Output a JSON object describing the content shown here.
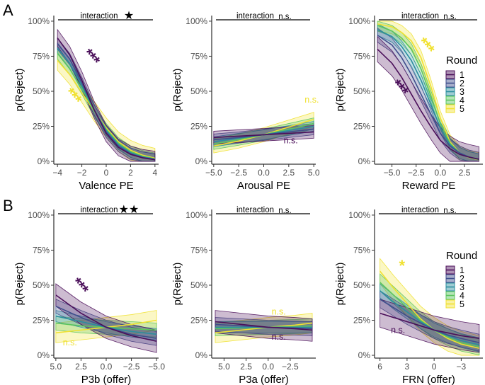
{
  "chart_data": [
    {
      "panel_letter": "A",
      "type": "line",
      "ribbons": true,
      "ylabel": "p(Reject)",
      "xlabel": "Valence PE",
      "xlim": [
        -4.3,
        4.3
      ],
      "ylim": [
        -0.02,
        1.04
      ],
      "x_reversed": false,
      "x_ticks": [
        -4,
        -2,
        0,
        2,
        4
      ],
      "x_tick_labels": [
        "−4",
        "−2",
        "0",
        "2",
        "4"
      ],
      "y_ticks": [
        0,
        0.25,
        0.5,
        0.75,
        1.0
      ],
      "y_tick_labels": [
        "0%",
        "25%",
        "50%",
        "75%",
        "100%"
      ],
      "interaction_label": "interaction",
      "interaction_mark": "★",
      "series": [
        {
          "name": "1",
          "x": [
            -4,
            -3,
            -2,
            -1,
            0,
            1,
            2,
            3,
            4
          ],
          "values": [
            0.88,
            0.76,
            0.58,
            0.37,
            0.2,
            0.1,
            0.05,
            0.025,
            0.012
          ],
          "band": 0.06
        },
        {
          "name": "2",
          "x": [
            -4,
            -3,
            -2,
            -1,
            0,
            1,
            2,
            3,
            4
          ],
          "values": [
            0.84,
            0.73,
            0.56,
            0.37,
            0.21,
            0.11,
            0.055,
            0.028,
            0.014
          ],
          "band": 0.04
        },
        {
          "name": "3",
          "x": [
            -4,
            -3,
            -2,
            -1,
            0,
            1,
            2,
            3,
            4
          ],
          "values": [
            0.81,
            0.7,
            0.54,
            0.37,
            0.22,
            0.12,
            0.062,
            0.032,
            0.016
          ],
          "band": 0.035
        },
        {
          "name": "4",
          "x": [
            -4,
            -3,
            -2,
            -1,
            0,
            1,
            2,
            3,
            4
          ],
          "values": [
            0.77,
            0.66,
            0.52,
            0.36,
            0.23,
            0.13,
            0.07,
            0.037,
            0.019
          ],
          "band": 0.04
        },
        {
          "name": "5",
          "x": [
            -4,
            -3,
            -2,
            -1,
            0,
            1,
            2,
            3,
            4
          ],
          "values": [
            0.72,
            0.62,
            0.49,
            0.36,
            0.24,
            0.14,
            0.08,
            0.044,
            0.023
          ],
          "band": 0.07
        }
      ],
      "annotations": [
        {
          "text": "***",
          "x": -1.55,
          "y": 0.72,
          "color_key": "round1"
        },
        {
          "text": "***",
          "x": -3.05,
          "y": 0.44,
          "color_key": "round5"
        }
      ]
    },
    {
      "panel_letter": "",
      "type": "line",
      "ribbons": true,
      "ylabel": "p(Reject)",
      "xlabel": "Arousal PE",
      "xlim": [
        -5.2,
        5.2
      ],
      "ylim": [
        -0.02,
        1.04
      ],
      "x_reversed": false,
      "x_ticks": [
        -5,
        -2.5,
        0,
        2.5,
        5
      ],
      "x_tick_labels": [
        "−5.0",
        "−2.5",
        "0.0",
        "2.5",
        "5.0"
      ],
      "y_ticks": [
        0,
        0.25,
        0.5,
        0.75,
        1.0
      ],
      "y_tick_labels": [
        "0%",
        "25%",
        "50%",
        "75%",
        "100%"
      ],
      "interaction_label": "interaction",
      "interaction_mark": "n.s.",
      "series": [
        {
          "name": "1",
          "x": [
            -5,
            -2.5,
            0,
            2.5,
            5
          ],
          "values": [
            0.17,
            0.18,
            0.19,
            0.2,
            0.21
          ],
          "band": 0.045
        },
        {
          "name": "2",
          "x": [
            -5,
            -2.5,
            0,
            2.5,
            5
          ],
          "values": [
            0.155,
            0.17,
            0.19,
            0.21,
            0.23
          ],
          "band": 0.04
        },
        {
          "name": "3",
          "x": [
            -5,
            -2.5,
            0,
            2.5,
            5
          ],
          "values": [
            0.14,
            0.165,
            0.19,
            0.22,
            0.25
          ],
          "band": 0.035
        },
        {
          "name": "4",
          "x": [
            -5,
            -2.5,
            0,
            2.5,
            5
          ],
          "values": [
            0.125,
            0.155,
            0.19,
            0.23,
            0.27
          ],
          "band": 0.04
        },
        {
          "name": "5",
          "x": [
            -5,
            -2.5,
            0,
            2.5,
            5
          ],
          "values": [
            0.11,
            0.145,
            0.19,
            0.245,
            0.3
          ],
          "band": 0.05
        }
      ],
      "annotations": [
        {
          "text": "n.s.",
          "x": 4.8,
          "y": 0.42,
          "color_key": "round5"
        },
        {
          "text": "n.s.",
          "x": 2.7,
          "y": 0.13,
          "color_key": "round1"
        }
      ]
    },
    {
      "panel_letter": "",
      "type": "line",
      "ribbons": true,
      "ylabel": "p(Reject)",
      "xlabel": "Reward PE",
      "xlim": [
        -6.8,
        4.4
      ],
      "ylim": [
        -0.02,
        1.04
      ],
      "x_reversed": false,
      "x_ticks": [
        -5,
        -2.5,
        0,
        2.5
      ],
      "x_tick_labels": [
        "−5.0",
        "−2.5",
        "0.0",
        "2.5"
      ],
      "y_ticks": [
        0,
        0.25,
        0.5,
        0.75,
        1.0
      ],
      "y_tick_labels": [
        "0%",
        "25%",
        "50%",
        "75%",
        "100%"
      ],
      "interaction_label": "interaction",
      "interaction_mark": "n.s.",
      "legend_title": "Round",
      "series": [
        {
          "name": "1",
          "x": [
            -6.5,
            -5,
            -4,
            -3,
            -2,
            -1,
            0,
            1,
            2,
            3,
            4
          ],
          "values": [
            0.8,
            0.7,
            0.6,
            0.48,
            0.36,
            0.25,
            0.15,
            0.09,
            0.05,
            0.03,
            0.015
          ],
          "band": 0.09
        },
        {
          "name": "2",
          "x": [
            -6.5,
            -5,
            -4,
            -3,
            -2,
            -1,
            0,
            1,
            2,
            3,
            4
          ],
          "values": [
            0.9,
            0.83,
            0.74,
            0.62,
            0.48,
            0.34,
            0.2,
            0.11,
            0.06,
            0.03,
            0.015
          ],
          "band": 0.05
        },
        {
          "name": "3",
          "x": [
            -6.5,
            -5,
            -4,
            -3,
            -2,
            -1,
            0,
            1,
            2,
            3,
            4
          ],
          "values": [
            0.94,
            0.89,
            0.82,
            0.72,
            0.58,
            0.41,
            0.24,
            0.12,
            0.06,
            0.03,
            0.014
          ],
          "band": 0.04
        },
        {
          "name": "4",
          "x": [
            -6.5,
            -5,
            -4,
            -3,
            -2,
            -1,
            0,
            1,
            2,
            3,
            4
          ],
          "values": [
            0.97,
            0.93,
            0.88,
            0.8,
            0.66,
            0.47,
            0.27,
            0.13,
            0.06,
            0.028,
            0.013
          ],
          "band": 0.04
        },
        {
          "name": "5",
          "x": [
            -6.5,
            -5,
            -4,
            -3,
            -2,
            -1,
            0,
            1,
            2,
            3,
            4
          ],
          "values": [
            0.98,
            0.96,
            0.92,
            0.86,
            0.74,
            0.54,
            0.31,
            0.14,
            0.06,
            0.026,
            0.012
          ],
          "band": 0.05
        }
      ],
      "annotations": [
        {
          "text": "***",
          "x": -1.9,
          "y": 0.8,
          "color_key": "round5"
        },
        {
          "text": "***",
          "x": -4.6,
          "y": 0.5,
          "color_key": "round1"
        }
      ]
    },
    {
      "panel_letter": "B",
      "type": "line",
      "ribbons": true,
      "ylabel": "p(Reject)",
      "xlabel": "P3b (offer)",
      "xlim": [
        5.2,
        -5.2
      ],
      "ylim": [
        -0.02,
        1.04
      ],
      "x_reversed": true,
      "x_ticks": [
        5,
        2.5,
        0,
        -2.5,
        -5
      ],
      "x_tick_labels": [
        "5.0",
        "2.5",
        "0.0",
        "−2.5",
        "−5.0"
      ],
      "y_ticks": [
        0,
        0.25,
        0.5,
        0.75,
        1.0
      ],
      "y_tick_labels": [
        "0%",
        "25%",
        "50%",
        "75%",
        "100%"
      ],
      "interaction_label": "interaction",
      "interaction_mark": "★★",
      "series": [
        {
          "name": "1",
          "x": [
            5,
            2.5,
            0,
            -2.5,
            -5
          ],
          "values": [
            0.43,
            0.3,
            0.2,
            0.14,
            0.1
          ],
          "band": 0.08
        },
        {
          "name": "2",
          "x": [
            5,
            2.5,
            0,
            -2.5,
            -5
          ],
          "values": [
            0.35,
            0.27,
            0.2,
            0.15,
            0.12
          ],
          "band": 0.05
        },
        {
          "name": "3",
          "x": [
            5,
            2.5,
            0,
            -2.5,
            -5
          ],
          "values": [
            0.28,
            0.24,
            0.2,
            0.17,
            0.15
          ],
          "band": 0.04
        },
        {
          "name": "4",
          "x": [
            5,
            2.5,
            0,
            -2.5,
            -5
          ],
          "values": [
            0.23,
            0.21,
            0.2,
            0.19,
            0.18
          ],
          "band": 0.05
        },
        {
          "name": "5",
          "x": [
            5,
            2.5,
            0,
            -2.5,
            -5
          ],
          "values": [
            0.16,
            0.18,
            0.2,
            0.22,
            0.25
          ],
          "band": 0.07
        }
      ],
      "annotations": [
        {
          "text": "***",
          "x": 3.0,
          "y": 0.47,
          "color_key": "round1"
        },
        {
          "text": "n.s.",
          "x": 3.6,
          "y": 0.07,
          "color_key": "round5"
        }
      ]
    },
    {
      "panel_letter": "",
      "type": "line",
      "ribbons": true,
      "ylabel": "p(Reject)",
      "xlabel": "P3a (offer)",
      "xlim": [
        6.4,
        -5.4
      ],
      "ylim": [
        -0.02,
        1.04
      ],
      "x_reversed": true,
      "x_ticks": [
        5,
        2.5,
        0,
        -2.5
      ],
      "x_tick_labels": [
        "5.0",
        "2.5",
        "0.0",
        "−2.5"
      ],
      "y_ticks": [
        0,
        0.25,
        0.5,
        0.75,
        1.0
      ],
      "y_tick_labels": [
        "0%",
        "25%",
        "50%",
        "75%",
        "100%"
      ],
      "interaction_label": "interaction",
      "interaction_mark": "n.s.",
      "series": [
        {
          "name": "1",
          "x": [
            6,
            3,
            0,
            -3,
            -5
          ],
          "values": [
            0.24,
            0.22,
            0.2,
            0.19,
            0.18
          ],
          "band": 0.08
        },
        {
          "name": "2",
          "x": [
            6,
            3,
            0,
            -3,
            -5
          ],
          "values": [
            0.22,
            0.21,
            0.2,
            0.195,
            0.19
          ],
          "band": 0.05
        },
        {
          "name": "3",
          "x": [
            6,
            3,
            0,
            -3,
            -5
          ],
          "values": [
            0.2,
            0.2,
            0.2,
            0.2,
            0.2
          ],
          "band": 0.04
        },
        {
          "name": "4",
          "x": [
            6,
            3,
            0,
            -3,
            -5
          ],
          "values": [
            0.19,
            0.195,
            0.2,
            0.205,
            0.21
          ],
          "band": 0.05
        },
        {
          "name": "5",
          "x": [
            6,
            3,
            0,
            -3,
            -5
          ],
          "values": [
            0.16,
            0.18,
            0.2,
            0.215,
            0.23
          ],
          "band": 0.07
        }
      ],
      "annotations": [
        {
          "text": "n.s.",
          "x": -1.2,
          "y": 0.29,
          "color_key": "round5"
        },
        {
          "text": "n.s.",
          "x": -1.2,
          "y": 0.11,
          "color_key": "round1"
        }
      ]
    },
    {
      "panel_letter": "",
      "type": "line",
      "ribbons": true,
      "ylabel": "p(Reject)",
      "xlabel": "FRN (offer)",
      "xlim": [
        6.6,
        -5.4
      ],
      "ylim": [
        -0.02,
        1.04
      ],
      "x_reversed": true,
      "x_ticks": [
        6,
        3,
        0,
        -3
      ],
      "x_tick_labels": [
        "6",
        "3",
        "0",
        "−3"
      ],
      "y_ticks": [
        0,
        0.25,
        0.5,
        0.75,
        1.0
      ],
      "y_tick_labels": [
        "0%",
        "25%",
        "50%",
        "75%",
        "100%"
      ],
      "interaction_label": "interaction",
      "interaction_mark": "n.s.",
      "legend_title": "Round",
      "series": [
        {
          "name": "1",
          "x": [
            6,
            4.5,
            3,
            1.5,
            0,
            -1.5,
            -3,
            -5
          ],
          "values": [
            0.3,
            0.27,
            0.24,
            0.21,
            0.18,
            0.16,
            0.14,
            0.12
          ],
          "band": 0.1
        },
        {
          "name": "2",
          "x": [
            6,
            4.5,
            3,
            1.5,
            0,
            -1.5,
            -3,
            -5
          ],
          "values": [
            0.4,
            0.34,
            0.28,
            0.23,
            0.18,
            0.145,
            0.12,
            0.09
          ],
          "band": 0.06
        },
        {
          "name": "3",
          "x": [
            6,
            4.5,
            3,
            1.5,
            0,
            -1.5,
            -3,
            -5
          ],
          "values": [
            0.46,
            0.38,
            0.31,
            0.24,
            0.18,
            0.14,
            0.105,
            0.075
          ],
          "band": 0.05
        },
        {
          "name": "4",
          "x": [
            6,
            4.5,
            3,
            1.5,
            0,
            -1.5,
            -3,
            -5
          ],
          "values": [
            0.52,
            0.43,
            0.34,
            0.25,
            0.18,
            0.13,
            0.09,
            0.062
          ],
          "band": 0.06
        },
        {
          "name": "5",
          "x": [
            6,
            4.5,
            3,
            1.5,
            0,
            -1.5,
            -3,
            -5
          ],
          "values": [
            0.6,
            0.48,
            0.37,
            0.26,
            0.18,
            0.12,
            0.08,
            0.05
          ],
          "band": 0.09
        }
      ],
      "annotations": [
        {
          "text": "*",
          "x": 3.6,
          "y": 0.6,
          "color_key": "round5"
        },
        {
          "text": "n.s.",
          "x": 4.0,
          "y": 0.16,
          "color_key": "round1"
        }
      ]
    }
  ],
  "legend": {
    "title": "Round",
    "items": [
      "1",
      "2",
      "3",
      "4",
      "5"
    ]
  },
  "colors": {
    "round1": "#4b0f5a",
    "round2": "#3f4e8c",
    "round3": "#2a8e9e",
    "round4": "#5cc55f",
    "round5": "#f0e130",
    "ribbon_opacity": 0.28,
    "axis": "#000000"
  }
}
